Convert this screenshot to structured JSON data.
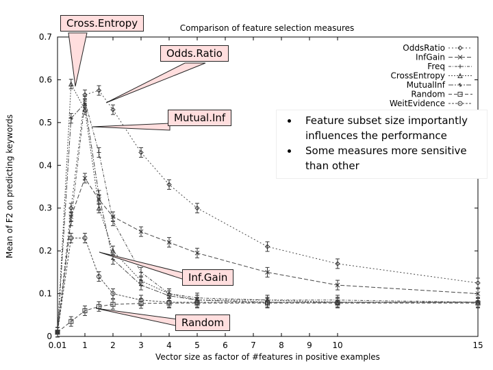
{
  "chart_data": {
    "type": "line",
    "title": "Comparison of feature selection measures",
    "xlabel": "Vector size as factor of #features in positive examples",
    "ylabel": "Mean of F2 on predicting keywords",
    "xlim": [
      0,
      15
    ],
    "ylim": [
      0,
      0.7
    ],
    "x_ticks": [
      "0.01",
      "1",
      "2",
      "3",
      "4",
      "5",
      "6",
      "7",
      "8",
      "9",
      "10",
      "15"
    ],
    "y_ticks": [
      "0",
      "0.1",
      "0.2",
      "0.3",
      "0.4",
      "0.5",
      "0.6",
      "0.7"
    ],
    "legend_position": "top-right",
    "series": [
      {
        "name": "OddsRatio",
        "x": [
          0.01,
          0.5,
          1,
          1.5,
          2,
          3,
          4,
          5,
          7.5,
          10,
          15
        ],
        "y": [
          0.01,
          0.3,
          0.565,
          0.575,
          0.53,
          0.43,
          0.355,
          0.3,
          0.21,
          0.17,
          0.125
        ]
      },
      {
        "name": "InfGain",
        "x": [
          0.01,
          0.5,
          1,
          1.5,
          2,
          3,
          4,
          5,
          7.5,
          10,
          15
        ],
        "y": [
          0.01,
          0.28,
          0.37,
          0.32,
          0.28,
          0.245,
          0.22,
          0.195,
          0.15,
          0.12,
          0.1
        ]
      },
      {
        "name": "Freq",
        "x": [
          0.01,
          0.5,
          1,
          1.5,
          2,
          3,
          4,
          5,
          7.5,
          10,
          15
        ],
        "y": [
          0.01,
          0.27,
          0.55,
          0.43,
          0.27,
          0.15,
          0.1,
          0.09,
          0.085,
          0.085,
          0.08
        ]
      },
      {
        "name": "CrossEntropy",
        "x": [
          0.01,
          0.5,
          1,
          1.5,
          2,
          3,
          4,
          5,
          7.5,
          10,
          15
        ],
        "y": [
          0.01,
          0.59,
          0.53,
          0.3,
          0.2,
          0.13,
          0.1,
          0.085,
          0.085,
          0.08,
          0.08
        ]
      },
      {
        "name": "MutualInf",
        "x": [
          0.01,
          0.5,
          1,
          1.5,
          2,
          3,
          4,
          5,
          7.5,
          10,
          15
        ],
        "y": [
          0.01,
          0.51,
          0.545,
          0.33,
          0.18,
          0.12,
          0.095,
          0.085,
          0.08,
          0.08,
          0.08
        ]
      },
      {
        "name": "Random",
        "x": [
          0.01,
          0.5,
          1,
          1.5,
          2,
          3,
          4,
          5,
          7.5,
          10,
          15
        ],
        "y": [
          0.01,
          0.035,
          0.06,
          0.07,
          0.075,
          0.077,
          0.078,
          0.078,
          0.078,
          0.078,
          0.078
        ]
      },
      {
        "name": "WeitEvidence",
        "x": [
          0.01,
          0.5,
          1,
          1.5,
          2,
          3,
          4,
          5,
          7.5,
          10,
          15
        ],
        "y": [
          0.01,
          0.23,
          0.23,
          0.14,
          0.1,
          0.085,
          0.08,
          0.08,
          0.08,
          0.08,
          0.08
        ]
      }
    ],
    "legend_entries": [
      "OddsRatio",
      "InfGain",
      "Freq",
      "CrossEntropy",
      "MutualInf",
      "Random",
      "WeitEvidence"
    ],
    "annotations": [
      "Cross.Entropy",
      "Odds.Ratio",
      "Mutual.Inf",
      "Inf.Gain",
      "Random"
    ]
  },
  "notes": [
    "Feature subset size importantly influences the performance",
    "Some measures more sensitive than other"
  ]
}
